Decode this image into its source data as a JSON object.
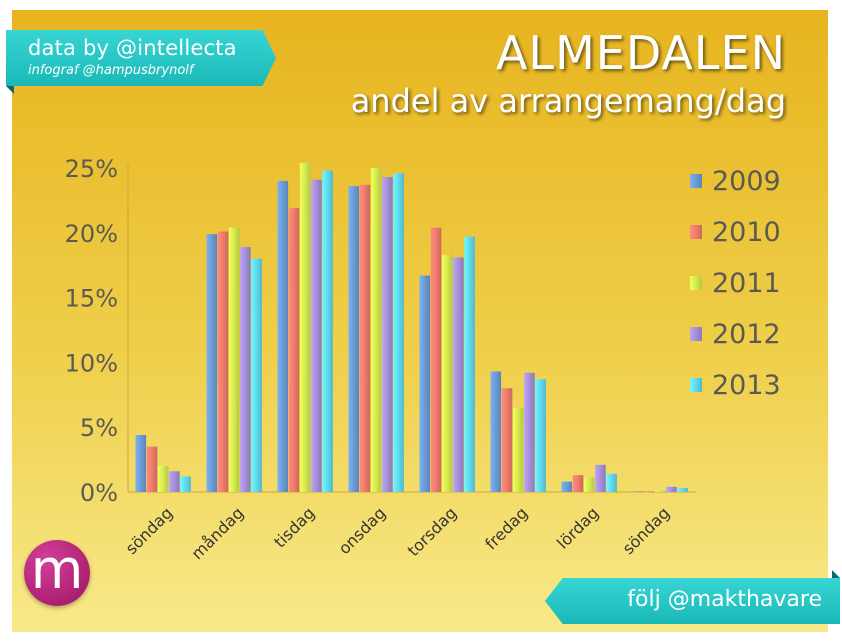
{
  "header": {
    "title": "ALMEDALEN",
    "subtitle": "andel av arrangemang/dag"
  },
  "credits": {
    "data_by": "data by @intellecta",
    "infograf": "infograf @hampusbrynolf"
  },
  "footer": {
    "follow": "följ @makthavare",
    "logo_letter": "m"
  },
  "colors": {
    "background_top": "#e9b823",
    "background_bottom": "#f7e57b",
    "ribbon": "#27c8c6",
    "logo": "#b82a7c"
  },
  "chart_data": {
    "type": "bar",
    "title": "andel av arrangemang/dag",
    "categories": [
      "söndag",
      "måndag",
      "tisdag",
      "onsdag",
      "torsdag",
      "fredag",
      "lördag",
      "söndag"
    ],
    "series": [
      {
        "name": "2009",
        "color": "#6a9bd6",
        "values": [
          4.4,
          19.9,
          24.0,
          23.6,
          16.7,
          9.3,
          0.8,
          0.0
        ]
      },
      {
        "name": "2010",
        "color": "#ee7b6c",
        "values": [
          3.5,
          20.1,
          21.9,
          23.7,
          20.4,
          8.0,
          1.3,
          0.05
        ]
      },
      {
        "name": "2011",
        "color": "#d3ea4f",
        "values": [
          2.0,
          20.4,
          25.4,
          25.0,
          18.3,
          6.5,
          1.1,
          0.1
        ]
      },
      {
        "name": "2012",
        "color": "#a58fd8",
        "values": [
          1.6,
          18.9,
          24.1,
          24.3,
          18.1,
          9.2,
          2.1,
          0.4
        ]
      },
      {
        "name": "2013",
        "color": "#5fd9ee",
        "values": [
          1.2,
          18.0,
          24.8,
          24.6,
          19.7,
          8.7,
          1.4,
          0.3
        ]
      }
    ],
    "y_ticks": [
      "0%",
      "5%",
      "10%",
      "15%",
      "20%",
      "25%"
    ],
    "ylim": [
      0,
      25
    ],
    "grid": false,
    "legend_position": "right"
  }
}
